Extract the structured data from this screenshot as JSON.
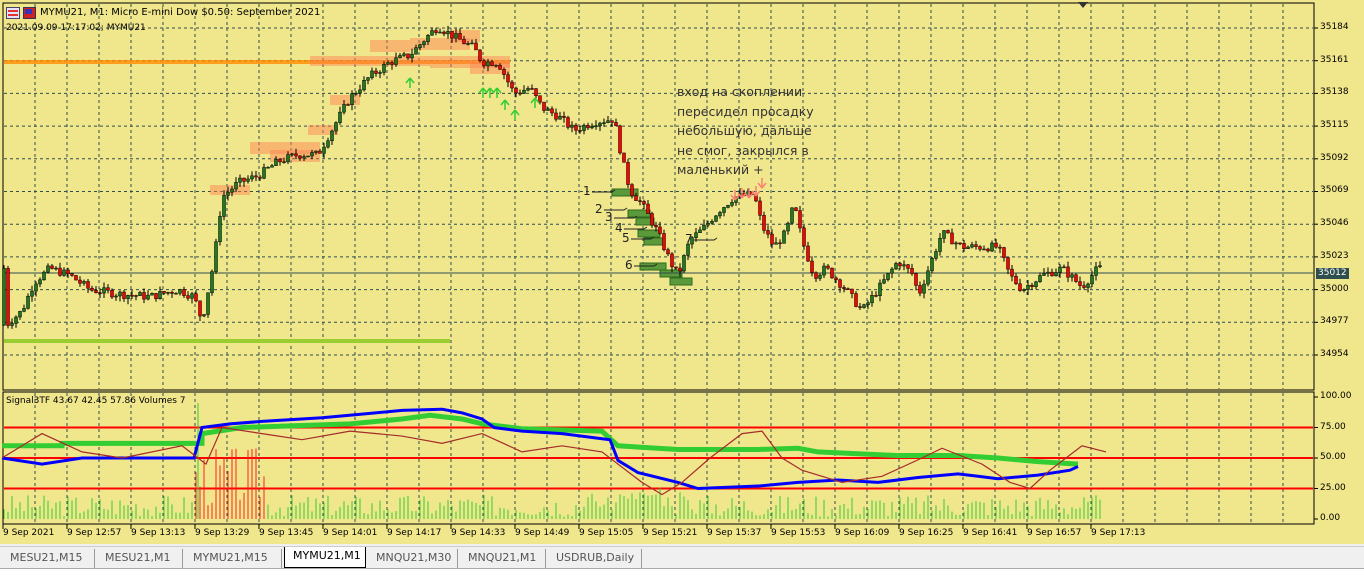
{
  "header": {
    "title": "MYMU21, M1:  Micro E-mini Dow $0.50: September 2021",
    "subtitle": "2021.09.09 17:17:02; MYMU21"
  },
  "indicator": {
    "label": "Signal3TF 43.67 42.45 57.86 Volumes 7",
    "levels": [
      25,
      50,
      75
    ],
    "scale": [
      "100.00",
      "75.00",
      "50.00",
      "25.00",
      "0.00"
    ]
  },
  "price_axis": [
    "35184",
    "35161",
    "35138",
    "35115",
    "35092",
    "35069",
    "35046",
    "35023",
    "35000",
    "34977",
    "34954"
  ],
  "current_price": "35012",
  "time_axis": [
    "9 Sep 2021",
    "9 Sep 12:57",
    "9 Sep 13:13",
    "9 Sep 13:29",
    "9 Sep 13:45",
    "9 Sep 14:01",
    "9 Sep 14:17",
    "9 Sep 14:33",
    "9 Sep 14:49",
    "9 Sep 15:05",
    "9 Sep 15:21",
    "9 Sep 15:37",
    "9 Sep 15:53",
    "9 Sep 16:09",
    "9 Sep 16:25",
    "9 Sep 16:41",
    "9 Sep 16:57",
    "9 Sep 17:13"
  ],
  "annotation": "вход на скоплении\nпересидел просадку\nнебольшую, дальше\nне смог, закрылся в\nмаленький +",
  "markers": [
    "1",
    "2",
    "3",
    "4",
    "5",
    "6",
    "7"
  ],
  "tabs": [
    {
      "label": "MESU21,M15"
    },
    {
      "label": "MESU21,M1"
    },
    {
      "label": "MYMU21,M15"
    },
    {
      "label": "MYMU21,M1",
      "active": true
    },
    {
      "label": "MNQU21,M30"
    },
    {
      "label": "MNQU21,M1"
    },
    {
      "label": "USDRUB,Daily"
    }
  ],
  "colors": {
    "background": "#f0e68c",
    "bull": "#1e7a1e",
    "bear": "#ff0000",
    "grid": "#2f4f4f",
    "blue_line": "#0000ff",
    "green_line": "#32cd32",
    "osc_line": "#a52a2a",
    "level": "#ff0000"
  },
  "chart_data": {
    "type": "candlestick",
    "timeframe": "M1",
    "ylim": [
      34954,
      35184
    ],
    "close_path": [
      [
        "12:42",
        34975
      ],
      [
        "12:46",
        34985
      ],
      [
        "12:49",
        35005
      ],
      [
        "12:53",
        35015
      ],
      [
        "12:58",
        35010
      ],
      [
        "13:03",
        35000
      ],
      [
        "13:10",
        34997
      ],
      [
        "13:18",
        34995
      ],
      [
        "13:25",
        35000
      ],
      [
        "13:29",
        34995
      ],
      [
        "13:31",
        34978
      ],
      [
        "13:34",
        35020
      ],
      [
        "13:36",
        35065
      ],
      [
        "13:40",
        35075
      ],
      [
        "13:45",
        35080
      ],
      [
        "13:50",
        35090
      ],
      [
        "13:55",
        35095
      ],
      [
        "14:00",
        35095
      ],
      [
        "14:04",
        35115
      ],
      [
        "14:08",
        35135
      ],
      [
        "14:13",
        35150
      ],
      [
        "14:18",
        35160
      ],
      [
        "14:23",
        35165
      ],
      [
        "14:28",
        35180
      ],
      [
        "14:30",
        35185
      ],
      [
        "14:34",
        35178
      ],
      [
        "14:39",
        35170
      ],
      [
        "14:41",
        35160
      ],
      [
        "14:45",
        35160
      ],
      [
        "14:49",
        35138
      ],
      [
        "14:53",
        35142
      ],
      [
        "14:56",
        35128
      ],
      [
        "15:00",
        35122
      ],
      [
        "15:04",
        35112
      ],
      [
        "15:09",
        35118
      ],
      [
        "15:14",
        35120
      ],
      [
        "15:16",
        35092
      ],
      [
        "15:18",
        35070
      ],
      [
        "15:21",
        35060
      ],
      [
        "15:25",
        35040
      ],
      [
        "15:28",
        35020
      ],
      [
        "15:30",
        35010
      ],
      [
        "15:33",
        35035
      ],
      [
        "15:36",
        35042
      ],
      [
        "15:40",
        35055
      ],
      [
        "15:44",
        35065
      ],
      [
        "15:49",
        35067
      ],
      [
        "15:51",
        35045
      ],
      [
        "15:54",
        35030
      ],
      [
        "15:57",
        35040
      ],
      [
        "15:59",
        35060
      ],
      [
        "16:01",
        35035
      ],
      [
        "16:04",
        35010
      ],
      [
        "16:07",
        35015
      ],
      [
        "16:12",
        35000
      ],
      [
        "16:16",
        34985
      ],
      [
        "16:20",
        35000
      ],
      [
        "16:25",
        35020
      ],
      [
        "16:29",
        35010
      ],
      [
        "16:30",
        34995
      ],
      [
        "16:34",
        35025
      ],
      [
        "16:36",
        35040
      ],
      [
        "16:41",
        35030
      ],
      [
        "16:46",
        35030
      ],
      [
        "16:50",
        35030
      ],
      [
        "16:53",
        35010
      ],
      [
        "16:56",
        35000
      ],
      [
        "17:01",
        35010
      ],
      [
        "17:06",
        35015
      ],
      [
        "17:11",
        35002
      ],
      [
        "17:15",
        35015
      ]
    ],
    "indicator_blue": [
      [
        "12:41",
        50
      ],
      [
        "12:51",
        45
      ],
      [
        "13:01",
        50
      ],
      [
        "13:29",
        50
      ],
      [
        "13:31",
        75
      ],
      [
        "13:38",
        78
      ],
      [
        "13:46",
        80
      ],
      [
        "14:01",
        83
      ],
      [
        "14:11",
        86
      ],
      [
        "14:21",
        89
      ],
      [
        "14:31",
        90
      ],
      [
        "14:36",
        87
      ],
      [
        "14:41",
        82
      ],
      [
        "14:44",
        75
      ],
      [
        "14:51",
        72
      ],
      [
        "15:01",
        70
      ],
      [
        "15:13",
        65
      ],
      [
        "15:15",
        48
      ],
      [
        "15:20",
        38
      ],
      [
        "15:30",
        30
      ],
      [
        "15:35",
        25
      ],
      [
        "15:50",
        27
      ],
      [
        "16:00",
        30
      ],
      [
        "16:10",
        32
      ],
      [
        "16:20",
        30
      ],
      [
        "16:30",
        34
      ],
      [
        "16:40",
        37
      ],
      [
        "16:45",
        35
      ],
      [
        "16:50",
        33
      ],
      [
        "17:00",
        36
      ],
      [
        "17:08",
        40
      ],
      [
        "17:10",
        43
      ]
    ],
    "indicator_green": [
      [
        "12:41",
        60
      ],
      [
        "12:56",
        60
      ],
      [
        "12:56",
        62
      ],
      [
        "13:31",
        62
      ],
      [
        "13:31",
        70
      ],
      [
        "13:41",
        75
      ],
      [
        "14:08",
        78
      ],
      [
        "14:21",
        82
      ],
      [
        "14:28",
        85
      ],
      [
        "14:36",
        82
      ],
      [
        "14:41",
        78
      ],
      [
        "14:51",
        74
      ],
      [
        "15:11",
        72
      ],
      [
        "15:15",
        60
      ],
      [
        "15:30",
        57
      ],
      [
        "15:50",
        57
      ],
      [
        "16:00",
        58
      ],
      [
        "16:05",
        55
      ],
      [
        "16:25",
        52
      ],
      [
        "16:40",
        52
      ],
      [
        "16:50",
        50
      ],
      [
        "17:00",
        47
      ],
      [
        "17:10",
        45
      ]
    ],
    "indicator_osc": [
      [
        "12:41",
        50
      ],
      [
        "12:51",
        70
      ],
      [
        "13:01",
        55
      ],
      [
        "13:11",
        50
      ],
      [
        "13:26",
        60
      ],
      [
        "13:32",
        45
      ],
      [
        "13:36",
        75
      ],
      [
        "13:46",
        70
      ],
      [
        "13:56",
        65
      ],
      [
        "14:08",
        72
      ],
      [
        "14:21",
        68
      ],
      [
        "14:31",
        62
      ],
      [
        "14:41",
        70
      ],
      [
        "14:51",
        55
      ],
      [
        "15:01",
        60
      ],
      [
        "15:11",
        55
      ],
      [
        "15:21",
        30
      ],
      [
        "15:26",
        20
      ],
      [
        "15:31",
        30
      ],
      [
        "15:38",
        50
      ],
      [
        "15:46",
        70
      ],
      [
        "15:51",
        72
      ],
      [
        "15:56",
        50
      ],
      [
        "16:01",
        40
      ],
      [
        "16:11",
        30
      ],
      [
        "16:21",
        35
      ],
      [
        "16:31",
        50
      ],
      [
        "16:36",
        58
      ],
      [
        "16:46",
        45
      ],
      [
        "16:53",
        30
      ],
      [
        "16:58",
        25
      ],
      [
        "17:03",
        40
      ],
      [
        "17:11",
        60
      ],
      [
        "17:17",
        55
      ]
    ]
  }
}
